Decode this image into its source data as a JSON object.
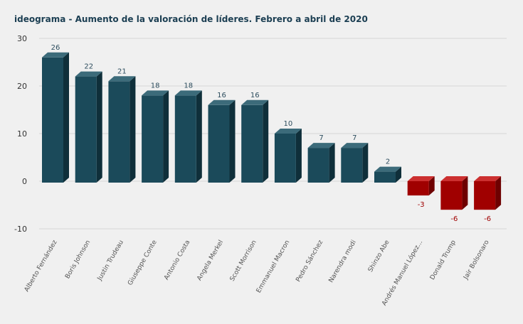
{
  "chart_data": {
    "type": "bar",
    "title": "ideograma - Aumento de la valoración de líderes. Febrero a abril de 2020",
    "xlabel": "",
    "ylabel": "",
    "categories": [
      "Alberto Fernández",
      "Boris Johnson",
      "Justin Trudeau",
      "Giuseppe Conte",
      "Antonio Costa",
      "Angela Merkel",
      "Scott Morrison",
      "Emmanuel Macron",
      "Pedro Sánchez",
      "Narendra modi",
      "Shinzo Abe",
      "Andrés Manuel López...",
      "Donald Trump",
      "Jair Bolsonaro"
    ],
    "values": [
      26,
      22,
      21,
      18,
      18,
      16,
      16,
      10,
      7,
      7,
      2,
      -3,
      -6,
      -6
    ],
    "ylim": [
      -10,
      30
    ],
    "yticks": [
      -10,
      0,
      10,
      20,
      30
    ],
    "grid": true,
    "legend": "none",
    "colors": {
      "positive_front": "#1b4a5a",
      "positive_top": "#3c6b7a",
      "positive_side": "#0f2f3a",
      "negative_front": "#a00000",
      "negative_top": "#cc3030",
      "negative_side": "#6e0000",
      "positive_label": "#2d4d5e",
      "negative_label": "#a00000",
      "grid": "#d6d6d6",
      "title": "#1b3e52"
    }
  }
}
